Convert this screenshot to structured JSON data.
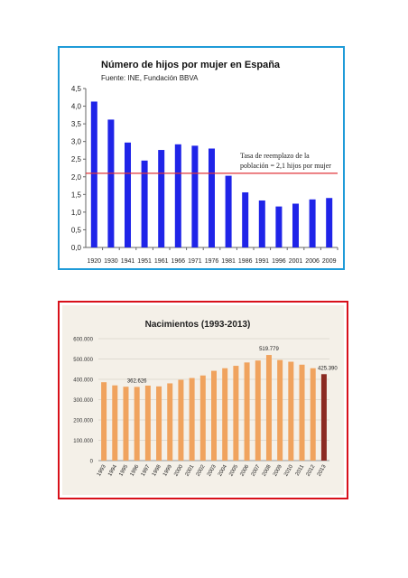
{
  "chart_data": [
    {
      "type": "bar",
      "title": "Número de hijos por mujer en España",
      "subtitle": "Fuente: INE, Fundación BBVA",
      "categories": [
        "1920",
        "1930",
        "1941",
        "1951",
        "1961",
        "1966",
        "1971",
        "1976",
        "1981",
        "1986",
        "1991",
        "1996",
        "2001",
        "2006",
        "2009"
      ],
      "values": [
        4.13,
        3.62,
        2.97,
        2.46,
        2.76,
        2.92,
        2.88,
        2.8,
        2.03,
        1.56,
        1.33,
        1.16,
        1.24,
        1.36,
        1.4
      ],
      "yticks": [
        "0,0",
        "0,5",
        "1,0",
        "1,5",
        "2,0",
        "2,5",
        "3,0",
        "3,5",
        "4,0",
        "4,5"
      ],
      "ylim": [
        0,
        4.5
      ],
      "bar_color": "#1f24e8",
      "reference_line": {
        "value": 2.1,
        "color": "#e0343a",
        "label_line1": "Tasa de reemplazo de la",
        "label_line2": "población = 2,1 hijos por mujer"
      },
      "grid": false
    },
    {
      "type": "bar",
      "title": "Nacimientos (1993-2013)",
      "categories": [
        "1993",
        "1994",
        "1995",
        "1996",
        "1997",
        "1998",
        "1999",
        "2000",
        "2001",
        "2002",
        "2003",
        "2004",
        "2005",
        "2006",
        "2007",
        "2008",
        "2009",
        "2010",
        "2011",
        "2012",
        "2013"
      ],
      "values": [
        385786,
        370148,
        363469,
        362626,
        369035,
        365193,
        380130,
        397632,
        406380,
        418846,
        441881,
        454591,
        466371,
        482957,
        492527,
        519779,
        494997,
        486575,
        471999,
        454648,
        425390
      ],
      "yticks": [
        "0",
        "100.000",
        "200.000",
        "300.000",
        "400.000",
        "500.000",
        "600.000"
      ],
      "ylim": [
        0,
        600000
      ],
      "bar_color": "#f0a35e",
      "last_bar_color": "#8b2a22",
      "annotations": [
        "362.626",
        "519.779",
        "425.390"
      ],
      "grid": true
    }
  ]
}
